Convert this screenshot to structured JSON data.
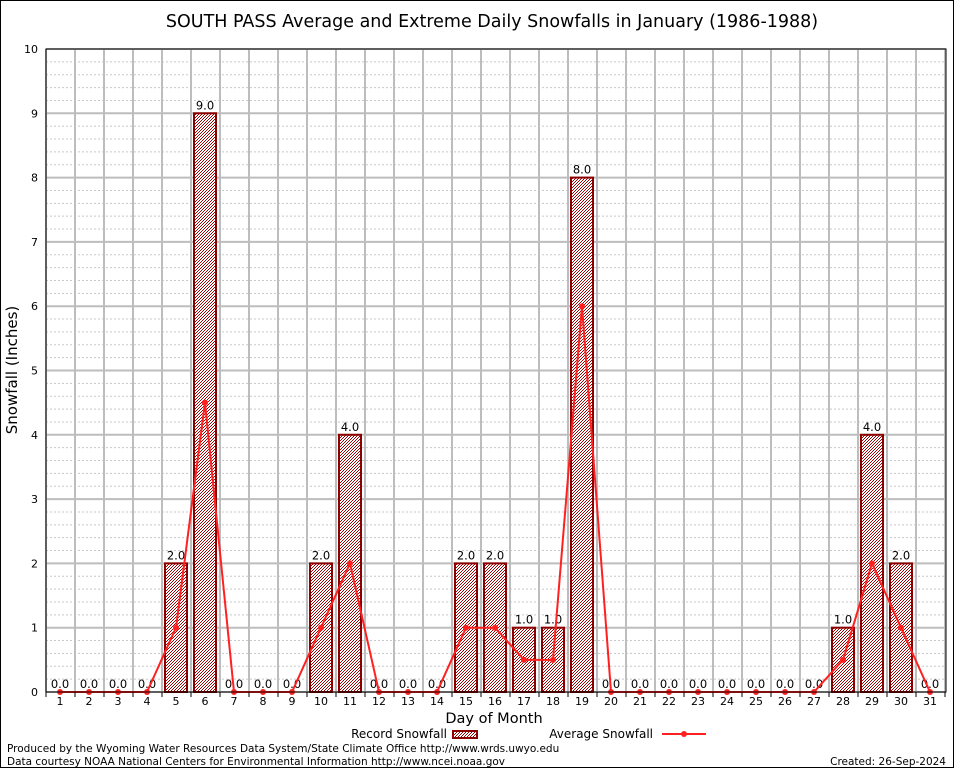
{
  "chart_data": {
    "type": "bar",
    "title": "SOUTH PASS Average and Extreme Daily Snowfalls in January (1986-1988)",
    "xlabel": "Day of Month",
    "ylabel": "Snowfall (Inches)",
    "ylim": [
      0,
      10
    ],
    "yticks": [
      "0",
      "1",
      "2",
      "3",
      "4",
      "5",
      "6",
      "7",
      "8",
      "9",
      "10"
    ],
    "categories": [
      "1",
      "2",
      "3",
      "4",
      "5",
      "6",
      "7",
      "8",
      "9",
      "10",
      "11",
      "12",
      "13",
      "14",
      "15",
      "16",
      "17",
      "18",
      "19",
      "20",
      "21",
      "22",
      "23",
      "24",
      "25",
      "26",
      "27",
      "28",
      "29",
      "30",
      "31"
    ],
    "grid": true,
    "legend_position": "bottom-center",
    "series": [
      {
        "name": "Record Snowfall",
        "type": "bar",
        "color": "#8b0000",
        "values": [
          0,
          0,
          0,
          0,
          2,
          9,
          0,
          0,
          0,
          2,
          4,
          0,
          0,
          0,
          2,
          2,
          1,
          1,
          8,
          0,
          0,
          0,
          0,
          0,
          0,
          0,
          0,
          1,
          4,
          2,
          0
        ],
        "labels": [
          "0.0",
          "0.0",
          "0.0",
          "0.0",
          "2.0",
          "9.0",
          "0.0",
          "0.0",
          "0.0",
          "2.0",
          "4.0",
          "0.0",
          "0.0",
          "0.0",
          "2.0",
          "2.0",
          "1.0",
          "1.0",
          "8.0",
          "0.0",
          "0.0",
          "0.0",
          "0.0",
          "0.0",
          "0.0",
          "0.0",
          "0.0",
          "1.0",
          "4.0",
          "2.0",
          "0.0"
        ]
      },
      {
        "name": "Average Snowfall",
        "type": "line",
        "color": "#ff2020",
        "values": [
          0,
          0,
          0,
          0,
          1,
          4.5,
          0,
          0,
          0,
          1,
          2,
          0,
          0,
          0,
          1,
          1,
          0.5,
          0.5,
          6,
          0,
          0,
          0,
          0,
          0,
          0,
          0,
          0,
          0.5,
          2,
          1,
          0
        ]
      }
    ]
  },
  "footer": {
    "produced_by": "Produced by the Wyoming Water Resources Data System/State Climate Office http://www.wrds.uwyo.edu",
    "data_courtesy": "Data courtesy NOAA National Centers for Environmental Information http://www.ncei.noaa.gov",
    "created": "Created: 26-Sep-2024"
  }
}
